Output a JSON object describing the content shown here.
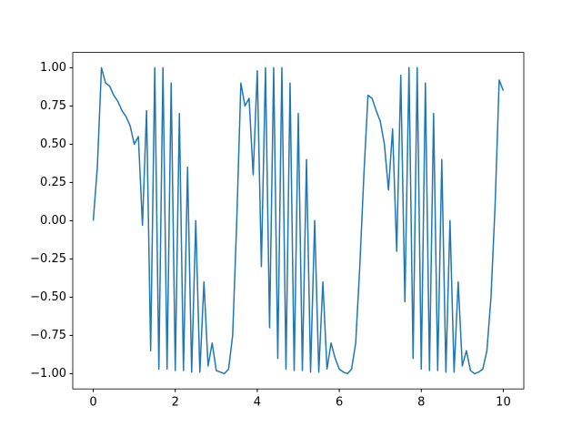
{
  "chart_data": {
    "type": "line",
    "color": "#1f77b4",
    "x": [
      0,
      0.1,
      0.2,
      0.3,
      0.4,
      0.5,
      0.6,
      0.7,
      0.8,
      0.9,
      1,
      1.1,
      1.2,
      1.3,
      1.4,
      1.5,
      1.6,
      1.7,
      1.8,
      1.9,
      2,
      2.1,
      2.2,
      2.3,
      2.4,
      2.5,
      2.6,
      2.7,
      2.8,
      2.9,
      3,
      3.1,
      3.2,
      3.3,
      3.4,
      3.5,
      3.6,
      3.7,
      3.8,
      3.9,
      4,
      4.1,
      4.2,
      4.3,
      4.4,
      4.5,
      4.6,
      4.7,
      4.8,
      4.9,
      5,
      5.1,
      5.2,
      5.3,
      5.4,
      5.5,
      5.6,
      5.7,
      5.8,
      5.9,
      6,
      6.1,
      6.2,
      6.3,
      6.4,
      6.5,
      6.6,
      6.7,
      6.8,
      6.9,
      7,
      7.1,
      7.2,
      7.3,
      7.4,
      7.5,
      7.6,
      7.7,
      7.8,
      7.9,
      8,
      8.1,
      8.2,
      8.3,
      8.4,
      8.5,
      8.6,
      8.7,
      8.8,
      8.9,
      9,
      9.1,
      9.2,
      9.3,
      9.4,
      9.5,
      9.6,
      9.7,
      9.8,
      9.9,
      10
    ],
    "values": [
      0,
      0.35,
      1,
      0.9,
      0.88,
      0.82,
      0.78,
      0.72,
      0.68,
      0.62,
      0.5,
      0.55,
      -0.03,
      0.72,
      -0.85,
      1,
      -0.97,
      1,
      -0.97,
      0.9,
      -0.98,
      0.7,
      -0.98,
      0.35,
      -0.99,
      0,
      -0.99,
      -0.4,
      -0.95,
      -0.8,
      -0.98,
      -0.99,
      -1,
      -0.97,
      -0.75,
      0,
      0.9,
      0.75,
      0.8,
      0.3,
      0.98,
      -0.3,
      1,
      -0.7,
      1,
      -0.9,
      1,
      -0.97,
      0.9,
      -0.98,
      0.7,
      -0.98,
      0.4,
      -0.99,
      0,
      -0.99,
      -0.4,
      -0.97,
      -0.8,
      -0.9,
      -0.97,
      -0.99,
      -1,
      -0.97,
      -0.8,
      -0.3,
      0.3,
      0.82,
      0.8,
      0.72,
      0.65,
      0.5,
      0.2,
      0.6,
      -0.2,
      0.95,
      -0.53,
      1,
      -0.9,
      1,
      -0.97,
      0.9,
      -0.98,
      0.7,
      -0.98,
      0.4,
      -0.99,
      0,
      -0.99,
      -0.4,
      -0.95,
      -0.85,
      -0.98,
      -1,
      -0.99,
      -0.97,
      -0.85,
      -0.5,
      0.1,
      0.92,
      0.85
    ],
    "xlim": [
      -0.5,
      10.5
    ],
    "xticks": [
      0,
      2,
      4,
      6,
      8,
      10
    ],
    "ylim": [
      -1.1,
      1.1
    ],
    "yticks": [
      {
        "value": -1,
        "label": "−1.00"
      },
      {
        "value": -0.75,
        "label": "−0.75"
      },
      {
        "value": -0.5,
        "label": "−0.50"
      },
      {
        "value": -0.25,
        "label": "−0.25"
      },
      {
        "value": 0,
        "label": "0.00"
      },
      {
        "value": 0.25,
        "label": "0.25"
      },
      {
        "value": 0.5,
        "label": "0.50"
      },
      {
        "value": 0.75,
        "label": "0.75"
      },
      {
        "value": 1,
        "label": "1.00"
      }
    ],
    "grid": false
  }
}
